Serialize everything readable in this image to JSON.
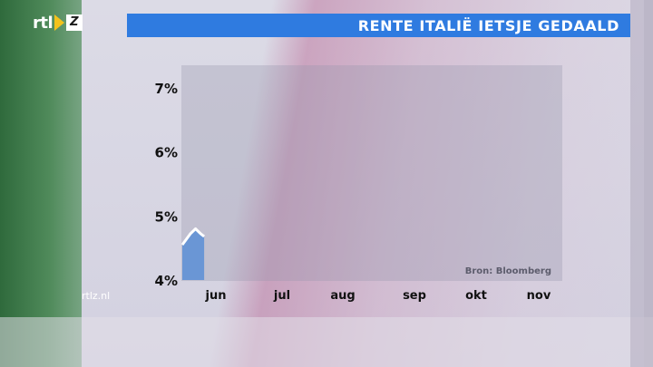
{
  "logo": {
    "text_rtl": "rtl",
    "text_z": "Z"
  },
  "title": "RENTE ITALIË IETSJE GEDAALD",
  "site": "rtlz.nl",
  "colors": {
    "title_bar": "#2f7be0",
    "area_fill": "#5b8ed6",
    "area_line": "#ffffff"
  },
  "chart_data": {
    "type": "area",
    "title": "RENTE ITALIË IETSJE GEDAALD",
    "xlabel": "",
    "ylabel": "",
    "x_tick_labels": [
      "jun",
      "jul",
      "aug",
      "sep",
      "okt",
      "nov"
    ],
    "y_tick_labels": [
      "4%",
      "5%",
      "6%",
      "7%"
    ],
    "ylim": [
      4,
      7
    ],
    "source": "Bron: Bloomberg",
    "grid": false,
    "series": [
      {
        "values": [
          {
            "x": 0.0,
            "y": 4.55
          },
          {
            "x": 0.12,
            "y": 4.72
          },
          {
            "x": 0.2,
            "y": 4.8
          },
          {
            "x": 0.28,
            "y": 4.72
          },
          {
            "x": 0.33,
            "y": 4.68
          }
        ]
      }
    ]
  }
}
